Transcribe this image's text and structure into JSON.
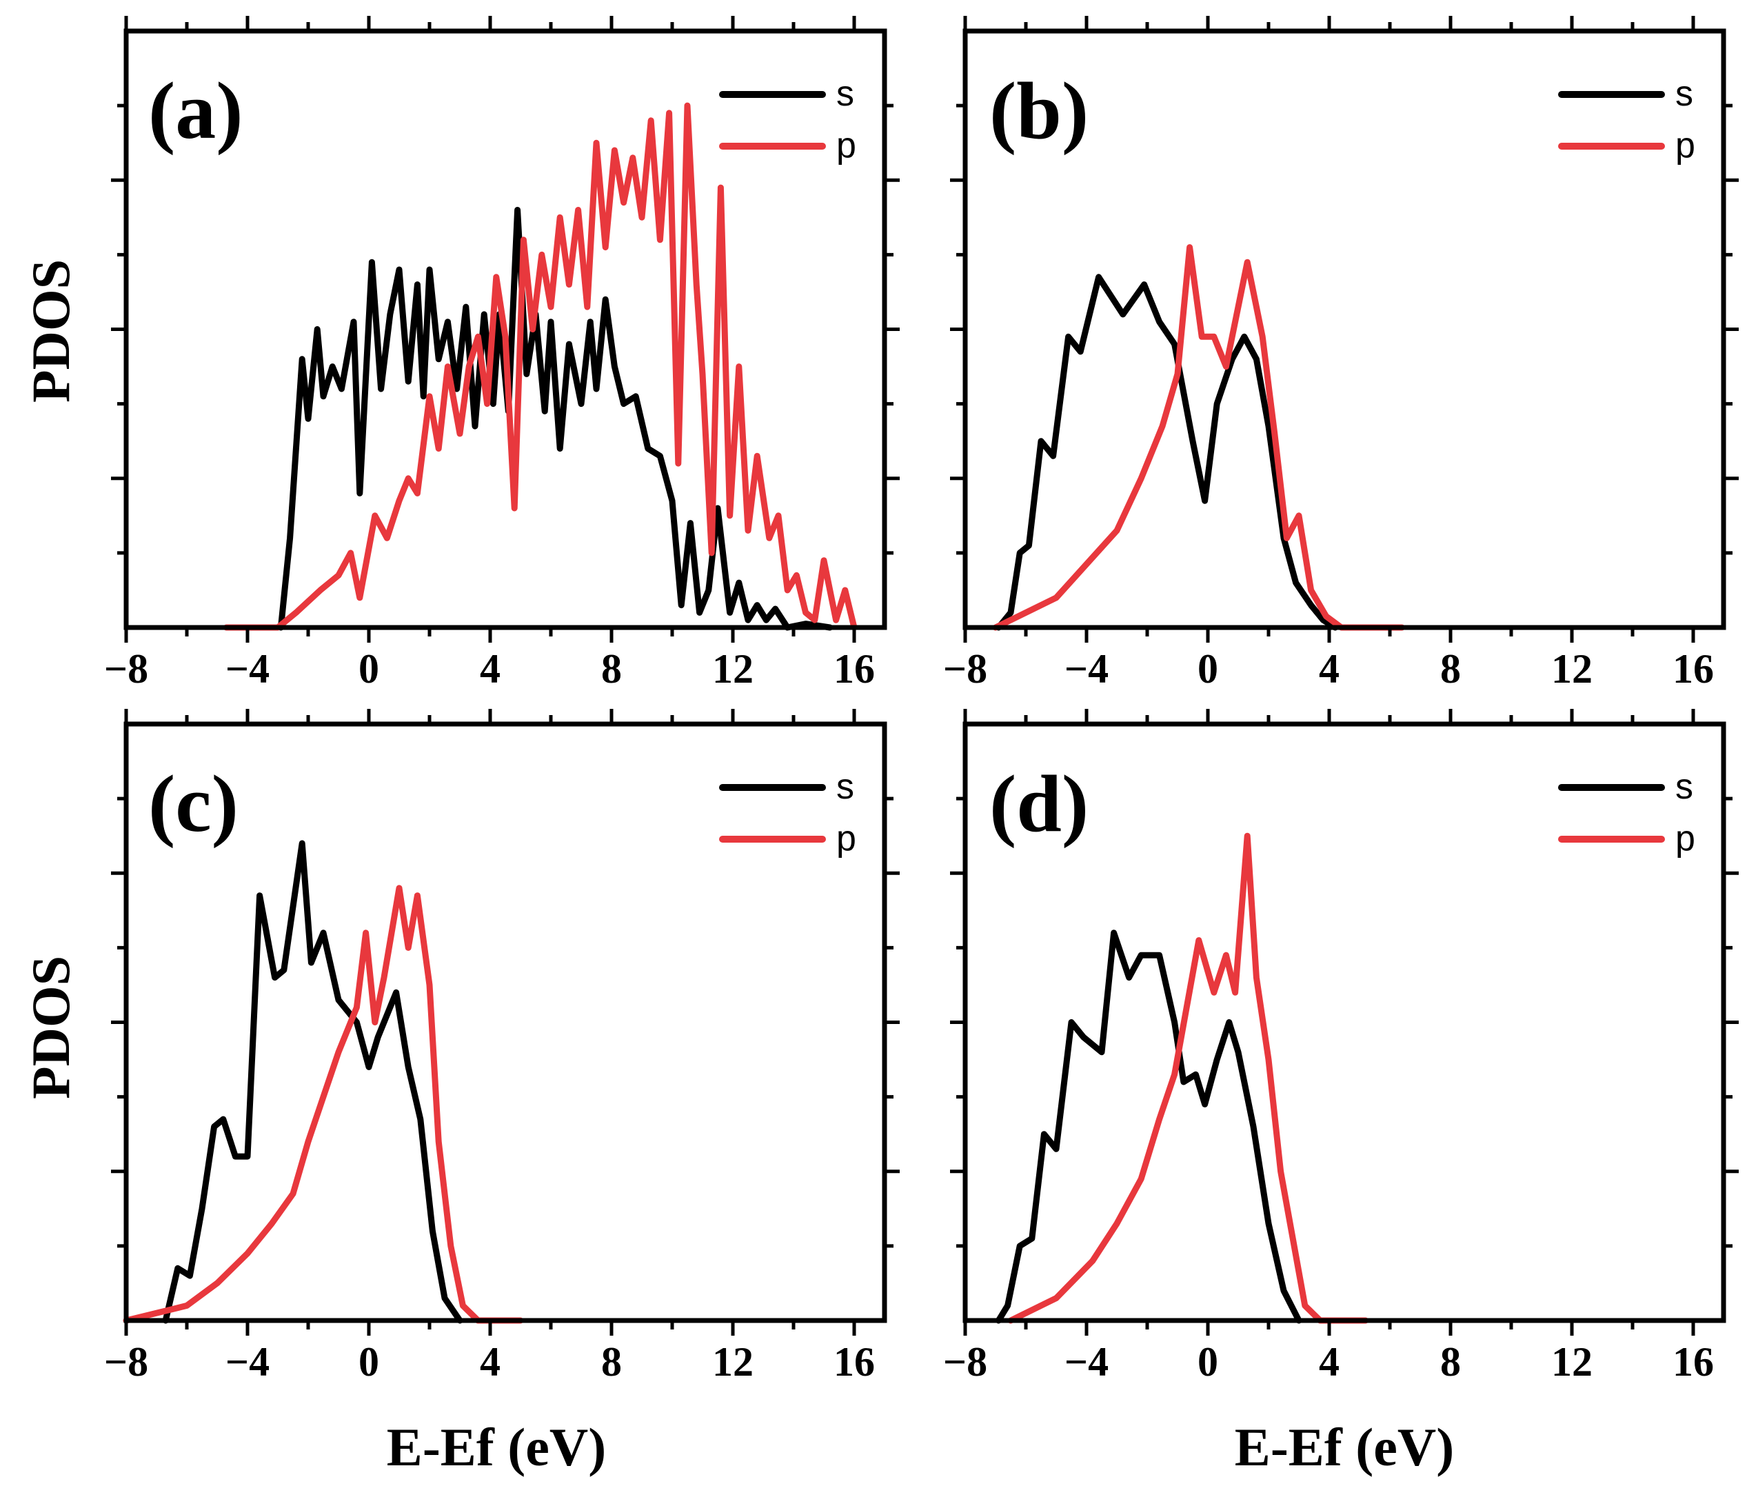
{
  "figure": {
    "y_axis_title": "PDOS",
    "x_axis_title": "E-Ef (eV)",
    "colors": {
      "s": "#000000",
      "p": "#e8383d"
    }
  },
  "chart_data": [
    {
      "panel": "(a)",
      "type": "line",
      "xlabel": "E-Ef (eV)",
      "ylabel": "PDOS",
      "xlim": [
        -8,
        17
      ],
      "ylim": [
        0,
        8
      ],
      "xticks": [
        -8,
        -4,
        0,
        4,
        8,
        12,
        16
      ],
      "xtick_labels": [
        "−8",
        "−4",
        "0",
        "4",
        "8",
        "12",
        "16"
      ],
      "legend": [
        "s",
        "p"
      ],
      "legend_position": "top-right",
      "series": [
        {
          "name": "s",
          "color": "#000000",
          "points": [
            [
              -2.9,
              0
            ],
            [
              -2.6,
              1.2
            ],
            [
              -2.2,
              3.6
            ],
            [
              -2.0,
              2.8
            ],
            [
              -1.7,
              4.0
            ],
            [
              -1.5,
              3.1
            ],
            [
              -1.2,
              3.5
            ],
            [
              -0.9,
              3.2
            ],
            [
              -0.5,
              4.1
            ],
            [
              -0.3,
              1.8
            ],
            [
              0.1,
              4.9
            ],
            [
              0.4,
              3.2
            ],
            [
              0.7,
              4.2
            ],
            [
              1.0,
              4.8
            ],
            [
              1.3,
              3.3
            ],
            [
              1.6,
              4.6
            ],
            [
              1.8,
              3.1
            ],
            [
              2.0,
              4.8
            ],
            [
              2.3,
              3.6
            ],
            [
              2.6,
              4.1
            ],
            [
              2.9,
              3.2
            ],
            [
              3.2,
              4.3
            ],
            [
              3.5,
              2.7
            ],
            [
              3.8,
              4.2
            ],
            [
              4.1,
              3.0
            ],
            [
              4.3,
              4.2
            ],
            [
              4.6,
              2.9
            ],
            [
              4.9,
              5.6
            ],
            [
              5.2,
              3.4
            ],
            [
              5.5,
              4.2
            ],
            [
              5.8,
              2.9
            ],
            [
              6.0,
              4.1
            ],
            [
              6.3,
              2.4
            ],
            [
              6.6,
              3.8
            ],
            [
              7.0,
              3.0
            ],
            [
              7.3,
              4.1
            ],
            [
              7.5,
              3.2
            ],
            [
              7.8,
              4.4
            ],
            [
              8.1,
              3.5
            ],
            [
              8.4,
              3.0
            ],
            [
              8.8,
              3.1
            ],
            [
              9.2,
              2.4
            ],
            [
              9.6,
              2.3
            ],
            [
              10.0,
              1.7
            ],
            [
              10.3,
              0.3
            ],
            [
              10.6,
              1.4
            ],
            [
              10.9,
              0.2
            ],
            [
              11.2,
              0.5
            ],
            [
              11.5,
              1.6
            ],
            [
              11.9,
              0.2
            ],
            [
              12.2,
              0.6
            ],
            [
              12.5,
              0.1
            ],
            [
              12.8,
              0.3
            ],
            [
              13.1,
              0.1
            ],
            [
              13.4,
              0.25
            ],
            [
              13.8,
              0
            ],
            [
              14.4,
              0.05
            ],
            [
              15.2,
              0
            ]
          ]
        },
        {
          "name": "p",
          "color": "#e8383d",
          "points": [
            [
              -4.7,
              0
            ],
            [
              -3.0,
              0
            ],
            [
              -2.4,
              0.2
            ],
            [
              -1.6,
              0.5
            ],
            [
              -1.0,
              0.7
            ],
            [
              -0.6,
              1.0
            ],
            [
              -0.3,
              0.4
            ],
            [
              0.2,
              1.5
            ],
            [
              0.6,
              1.2
            ],
            [
              1.0,
              1.7
            ],
            [
              1.3,
              2.0
            ],
            [
              1.6,
              1.8
            ],
            [
              2.0,
              3.1
            ],
            [
              2.3,
              2.4
            ],
            [
              2.6,
              3.5
            ],
            [
              3.0,
              2.6
            ],
            [
              3.3,
              3.5
            ],
            [
              3.6,
              3.9
            ],
            [
              3.9,
              3.0
            ],
            [
              4.2,
              4.7
            ],
            [
              4.5,
              3.9
            ],
            [
              4.8,
              1.6
            ],
            [
              5.1,
              5.2
            ],
            [
              5.4,
              4.0
            ],
            [
              5.7,
              5.0
            ],
            [
              6.0,
              4.3
            ],
            [
              6.3,
              5.5
            ],
            [
              6.6,
              4.6
            ],
            [
              6.9,
              5.6
            ],
            [
              7.2,
              4.3
            ],
            [
              7.5,
              6.5
            ],
            [
              7.8,
              5.1
            ],
            [
              8.1,
              6.4
            ],
            [
              8.4,
              5.7
            ],
            [
              8.7,
              6.3
            ],
            [
              9.0,
              5.5
            ],
            [
              9.3,
              6.8
            ],
            [
              9.6,
              5.2
            ],
            [
              9.9,
              6.9
            ],
            [
              10.2,
              2.2
            ],
            [
              10.5,
              7.0
            ],
            [
              10.8,
              4.6
            ],
            [
              11.0,
              3.4
            ],
            [
              11.3,
              1.0
            ],
            [
              11.6,
              5.9
            ],
            [
              11.9,
              1.5
            ],
            [
              12.2,
              3.5
            ],
            [
              12.5,
              1.3
            ],
            [
              12.8,
              2.3
            ],
            [
              13.2,
              1.2
            ],
            [
              13.5,
              1.5
            ],
            [
              13.8,
              0.5
            ],
            [
              14.1,
              0.7
            ],
            [
              14.4,
              0.2
            ],
            [
              14.7,
              0.1
            ],
            [
              15.0,
              0.9
            ],
            [
              15.4,
              0.1
            ],
            [
              15.7,
              0.5
            ],
            [
              16.0,
              0
            ]
          ]
        }
      ]
    },
    {
      "panel": "(b)",
      "type": "line",
      "xlabel": "E-Ef (eV)",
      "ylabel": "PDOS",
      "xlim": [
        -8,
        17
      ],
      "ylim": [
        0,
        8
      ],
      "xticks": [
        -8,
        -4,
        0,
        4,
        8,
        12,
        16
      ],
      "xtick_labels": [
        "−8",
        "−4",
        "0",
        "4",
        "8",
        "12",
        "16"
      ],
      "legend": [
        "s",
        "p"
      ],
      "legend_position": "top-right",
      "series": [
        {
          "name": "s",
          "color": "#000000",
          "points": [
            [
              -6.9,
              0
            ],
            [
              -6.5,
              0.2
            ],
            [
              -6.2,
              1.0
            ],
            [
              -5.9,
              1.1
            ],
            [
              -5.5,
              2.5
            ],
            [
              -5.1,
              2.3
            ],
            [
              -4.6,
              3.9
            ],
            [
              -4.2,
              3.7
            ],
            [
              -3.6,
              4.7
            ],
            [
              -2.8,
              4.2
            ],
            [
              -2.1,
              4.6
            ],
            [
              -1.6,
              4.1
            ],
            [
              -1.1,
              3.8
            ],
            [
              -0.5,
              2.5
            ],
            [
              -0.1,
              1.7
            ],
            [
              0.3,
              3.0
            ],
            [
              0.8,
              3.6
            ],
            [
              1.2,
              3.9
            ],
            [
              1.6,
              3.6
            ],
            [
              2.0,
              2.7
            ],
            [
              2.5,
              1.2
            ],
            [
              2.9,
              0.6
            ],
            [
              3.4,
              0.3
            ],
            [
              3.8,
              0.1
            ],
            [
              4.2,
              0
            ]
          ]
        },
        {
          "name": "p",
          "color": "#e8383d",
          "points": [
            [
              -7.0,
              0
            ],
            [
              -5.0,
              0.4
            ],
            [
              -3.0,
              1.3
            ],
            [
              -2.2,
              2.0
            ],
            [
              -1.5,
              2.7
            ],
            [
              -1.0,
              3.4
            ],
            [
              -0.6,
              5.1
            ],
            [
              -0.2,
              3.9
            ],
            [
              0.2,
              3.9
            ],
            [
              0.6,
              3.5
            ],
            [
              1.3,
              4.9
            ],
            [
              1.8,
              3.9
            ],
            [
              2.2,
              2.6
            ],
            [
              2.6,
              1.2
            ],
            [
              3.0,
              1.5
            ],
            [
              3.4,
              0.5
            ],
            [
              3.9,
              0.15
            ],
            [
              4.4,
              0
            ],
            [
              6.4,
              0
            ]
          ]
        }
      ]
    },
    {
      "panel": "(c)",
      "type": "line",
      "xlabel": "E-Ef (eV)",
      "ylabel": "PDOS",
      "xlim": [
        -8,
        17
      ],
      "ylim": [
        0,
        8
      ],
      "xticks": [
        -8,
        -4,
        0,
        4,
        8,
        12,
        16
      ],
      "xtick_labels": [
        "−8",
        "−4",
        "0",
        "4",
        "8",
        "12",
        "16"
      ],
      "legend": [
        "s",
        "p"
      ],
      "legend_position": "top-right",
      "series": [
        {
          "name": "s",
          "color": "#000000",
          "points": [
            [
              -6.7,
              0
            ],
            [
              -6.3,
              0.7
            ],
            [
              -5.9,
              0.6
            ],
            [
              -5.5,
              1.5
            ],
            [
              -5.1,
              2.6
            ],
            [
              -4.8,
              2.7
            ],
            [
              -4.4,
              2.2
            ],
            [
              -4.0,
              2.2
            ],
            [
              -3.6,
              5.7
            ],
            [
              -3.1,
              4.6
            ],
            [
              -2.8,
              4.7
            ],
            [
              -2.2,
              6.4
            ],
            [
              -1.9,
              4.8
            ],
            [
              -1.5,
              5.2
            ],
            [
              -1.0,
              4.3
            ],
            [
              -0.4,
              4.0
            ],
            [
              0.0,
              3.4
            ],
            [
              0.3,
              3.8
            ],
            [
              0.9,
              4.4
            ],
            [
              1.3,
              3.4
            ],
            [
              1.7,
              2.7
            ],
            [
              2.1,
              1.2
            ],
            [
              2.5,
              0.3
            ],
            [
              3.0,
              0
            ]
          ]
        },
        {
          "name": "p",
          "color": "#e8383d",
          "points": [
            [
              -8.0,
              0
            ],
            [
              -6.0,
              0.2
            ],
            [
              -5.0,
              0.5
            ],
            [
              -4.0,
              0.9
            ],
            [
              -3.2,
              1.3
            ],
            [
              -2.5,
              1.7
            ],
            [
              -2.0,
              2.4
            ],
            [
              -1.5,
              3.0
            ],
            [
              -1.0,
              3.6
            ],
            [
              -0.4,
              4.2
            ],
            [
              -0.1,
              5.2
            ],
            [
              0.2,
              4.0
            ],
            [
              0.5,
              4.6
            ],
            [
              1.0,
              5.8
            ],
            [
              1.3,
              5.0
            ],
            [
              1.6,
              5.7
            ],
            [
              2.0,
              4.5
            ],
            [
              2.3,
              2.4
            ],
            [
              2.7,
              1.0
            ],
            [
              3.1,
              0.2
            ],
            [
              3.6,
              0
            ],
            [
              5.0,
              0
            ]
          ]
        }
      ]
    },
    {
      "panel": "(d)",
      "type": "line",
      "xlabel": "E-Ef (eV)",
      "ylabel": "PDOS",
      "xlim": [
        -8,
        17
      ],
      "ylim": [
        0,
        8
      ],
      "xticks": [
        -8,
        -4,
        0,
        4,
        8,
        12,
        16
      ],
      "xtick_labels": [
        "−8",
        "−4",
        "0",
        "4",
        "8",
        "12",
        "16"
      ],
      "legend": [
        "s",
        "p"
      ],
      "legend_position": "top-right",
      "series": [
        {
          "name": "s",
          "color": "#000000",
          "points": [
            [
              -6.9,
              0
            ],
            [
              -6.6,
              0.2
            ],
            [
              -6.2,
              1.0
            ],
            [
              -5.8,
              1.1
            ],
            [
              -5.4,
              2.5
            ],
            [
              -5.0,
              2.3
            ],
            [
              -4.5,
              4.0
            ],
            [
              -4.1,
              3.8
            ],
            [
              -3.5,
              3.6
            ],
            [
              -3.1,
              5.2
            ],
            [
              -2.6,
              4.6
            ],
            [
              -2.2,
              4.9
            ],
            [
              -1.6,
              4.9
            ],
            [
              -1.1,
              4.0
            ],
            [
              -0.8,
              3.2
            ],
            [
              -0.4,
              3.3
            ],
            [
              -0.1,
              2.9
            ],
            [
              0.3,
              3.5
            ],
            [
              0.7,
              4.0
            ],
            [
              1.0,
              3.6
            ],
            [
              1.5,
              2.6
            ],
            [
              2.0,
              1.3
            ],
            [
              2.5,
              0.4
            ],
            [
              3.0,
              0
            ]
          ]
        },
        {
          "name": "p",
          "color": "#e8383d",
          "points": [
            [
              -6.5,
              0
            ],
            [
              -5.0,
              0.3
            ],
            [
              -3.8,
              0.8
            ],
            [
              -3.0,
              1.3
            ],
            [
              -2.2,
              1.9
            ],
            [
              -1.6,
              2.7
            ],
            [
              -1.1,
              3.3
            ],
            [
              -0.3,
              5.1
            ],
            [
              0.2,
              4.4
            ],
            [
              0.6,
              4.9
            ],
            [
              0.9,
              4.4
            ],
            [
              1.3,
              6.5
            ],
            [
              1.6,
              4.6
            ],
            [
              2.0,
              3.5
            ],
            [
              2.4,
              2.0
            ],
            [
              2.8,
              1.1
            ],
            [
              3.2,
              0.2
            ],
            [
              3.7,
              0
            ],
            [
              5.2,
              0
            ]
          ]
        }
      ]
    }
  ]
}
